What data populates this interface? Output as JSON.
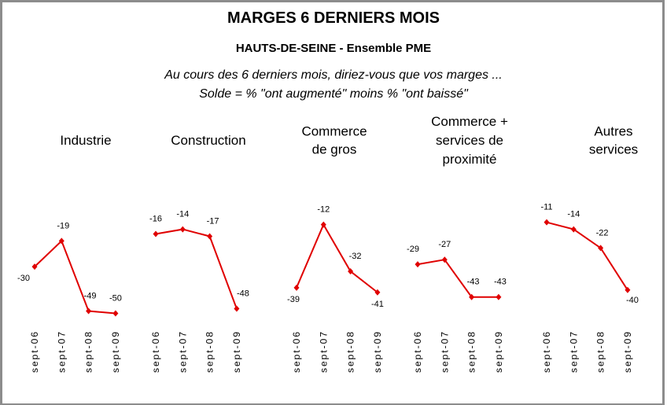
{
  "header": {
    "title": "MARGES 6 DERNIERS MOIS",
    "subtitle": "HAUTS-DE-SEINE - Ensemble PME",
    "question": [
      "Au cours des 6 derniers mois, diriez-vous que vos marges ...",
      "Solde = % \"ont augmenté\"  moins %   \"ont baissé\""
    ]
  },
  "chart_data": [
    {
      "type": "line",
      "title": [
        "Industrie"
      ],
      "categories": [
        "sept-06",
        "sept-07",
        "sept-08",
        "sept-09"
      ],
      "values": [
        -30,
        -19,
        -49,
        -50
      ],
      "color": "#e00000"
    },
    {
      "type": "line",
      "title": [
        "Construction"
      ],
      "categories": [
        "sept-06",
        "sept-07",
        "sept-08",
        "sept-09"
      ],
      "values": [
        -16,
        -14,
        -17,
        -48
      ],
      "color": "#e00000"
    },
    {
      "type": "line",
      "title": [
        "Commerce",
        "de gros"
      ],
      "categories": [
        "sept-06",
        "sept-07",
        "sept-08",
        "sept-09"
      ],
      "values": [
        -39,
        -12,
        -32,
        -41
      ],
      "color": "#e00000"
    },
    {
      "type": "line",
      "title": [
        "Commerce +",
        "services de",
        "proximité"
      ],
      "categories": [
        "sept-06",
        "sept-07",
        "sept-08",
        "sept-09"
      ],
      "values": [
        -29,
        -27,
        -43,
        -43
      ],
      "color": "#e00000"
    },
    {
      "type": "line",
      "title": [
        "Autres",
        "services"
      ],
      "categories": [
        "sept-06",
        "sept-07",
        "sept-08",
        "sept-09"
      ],
      "values": [
        -11,
        -14,
        -22,
        -40
      ],
      "color": "#e00000"
    }
  ]
}
